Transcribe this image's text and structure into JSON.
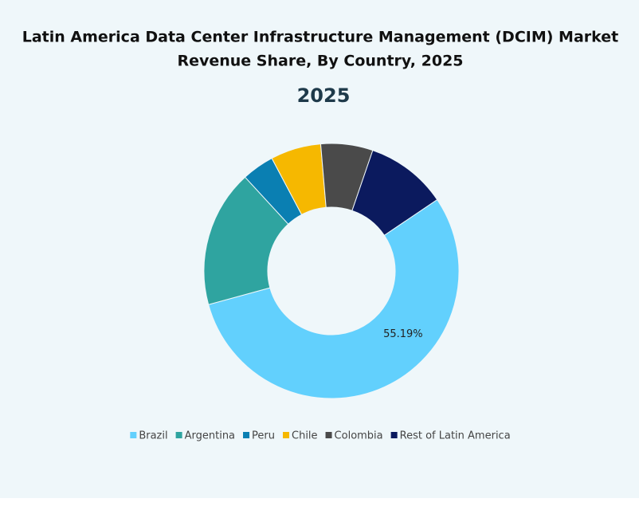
{
  "chart_data": {
    "type": "donut",
    "title": [
      "Latin America Data Center Infrastructure Management (DCIM) Market",
      "Revenue Share, By Country, 2025"
    ],
    "subtitle": "2025",
    "categories": [
      "Brazil",
      "Argentina",
      "Peru",
      "Chile",
      "Colombia",
      "Rest of Latin America"
    ],
    "values": [
      55.19,
      17.4,
      4.1,
      6.4,
      6.6,
      10.3
    ],
    "value_labels": [
      "55.19%",
      null,
      null,
      null,
      null,
      null
    ],
    "colors": [
      "#62d0fd",
      "#2fa4a0",
      "#0a7fb2",
      "#f6b800",
      "#4a4a4a",
      "#0b1a5e"
    ],
    "legend": "bottom"
  }
}
